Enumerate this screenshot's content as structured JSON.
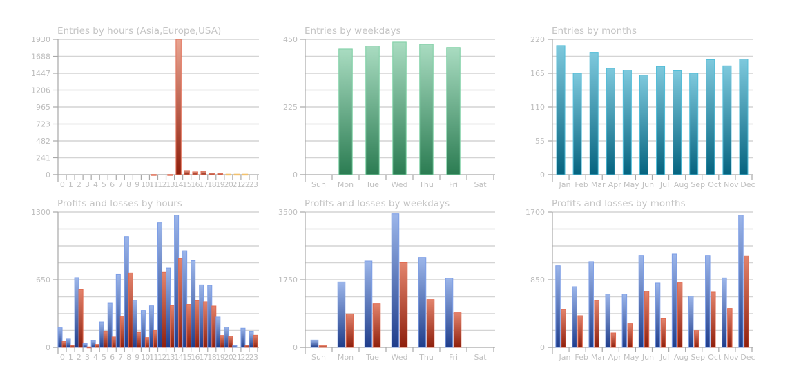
{
  "colors": {
    "entries_hours": [
      "#e9a592",
      "#8e1f0c",
      "#e07058"
    ],
    "entries_hours_orange": [
      "#ffd27a",
      "#f5b23a",
      "#f0c070"
    ],
    "entries_weekdays": [
      "#a9dcc1",
      "#2b7c52",
      "#7ccfa3"
    ],
    "entries_months": [
      "#7ec9dd",
      "#05637f",
      "#52bdd8"
    ],
    "profit": [
      "#9cb6ea",
      "#1f3d8b",
      "#7d9ee6"
    ],
    "loss": [
      "#e3846d",
      "#8e1f0c",
      "#e06a50"
    ]
  },
  "chart_data": [
    {
      "id": "entries-hours",
      "type": "bar",
      "title": "Entries by hours (Asia,Europe,USA)",
      "categories": [
        "0",
        "1",
        "2",
        "3",
        "4",
        "5",
        "6",
        "7",
        "8",
        "9",
        "10",
        "11",
        "12",
        "13",
        "14",
        "15",
        "16",
        "17",
        "18",
        "19",
        "20",
        "21",
        "22",
        "23"
      ],
      "series": [
        {
          "name": "Entries",
          "values": [
            0,
            0,
            0,
            0,
            0,
            0,
            0,
            0,
            0,
            0,
            0,
            3,
            0,
            3,
            1930,
            60,
            40,
            48,
            22,
            18,
            8,
            8,
            8,
            0
          ]
        }
      ],
      "highlight_orange_from": 20,
      "yticks": [
        "0",
        "241",
        "482",
        "723",
        "965",
        "1206",
        "1447",
        "1688",
        "1930"
      ],
      "ylim": [
        0,
        1930
      ],
      "grid": true,
      "xlabel": "",
      "ylabel": ""
    },
    {
      "id": "entries-weekdays",
      "type": "bar",
      "title": "Entries by weekdays",
      "categories": [
        "Sun",
        "Mon",
        "Tue",
        "Wed",
        "Thu",
        "Fri",
        "Sat"
      ],
      "series": [
        {
          "name": "Entries",
          "values": [
            0,
            418,
            428,
            441,
            434,
            423,
            0
          ]
        }
      ],
      "yticks": [
        "0",
        "225",
        "450"
      ],
      "ylim": [
        0,
        450
      ],
      "grid": true,
      "xlabel": "",
      "ylabel": ""
    },
    {
      "id": "entries-months",
      "type": "bar",
      "title": "Entries by months",
      "categories": [
        "Jan",
        "Feb",
        "Mar",
        "Apr",
        "May",
        "Jun",
        "Jul",
        "Aug",
        "Sep",
        "Oct",
        "Nov",
        "Dec"
      ],
      "series": [
        {
          "name": "Entries",
          "values": [
            210,
            165,
            198,
            173,
            170,
            162,
            176,
            169,
            165,
            187,
            177,
            188
          ]
        }
      ],
      "yticks": [
        "0",
        "55",
        "110",
        "165",
        "220"
      ],
      "ylim": [
        0,
        220
      ],
      "grid": true,
      "xlabel": "",
      "ylabel": ""
    },
    {
      "id": "pl-hours",
      "type": "bar",
      "title": "Profits and losses by hours",
      "categories": [
        "0",
        "1",
        "2",
        "3",
        "4",
        "5",
        "6",
        "7",
        "8",
        "9",
        "10",
        "11",
        "12",
        "13",
        "14",
        "15",
        "16",
        "17",
        "18",
        "19",
        "20",
        "21",
        "22",
        "23"
      ],
      "series": [
        {
          "name": "Profits",
          "values": [
            188,
            80,
            670,
            36,
            66,
            245,
            424,
            700,
            1063,
            453,
            354,
            400,
            1196,
            762,
            1269,
            928,
            833,
            601,
            597,
            292,
            195,
            18,
            184,
            149
          ]
        },
        {
          "name": "Losses",
          "values": [
            56,
            22,
            555,
            5,
            29,
            153,
            100,
            301,
            714,
            144,
            95,
            162,
            721,
            404,
            855,
            414,
            449,
            438,
            398,
            115,
            109,
            0,
            22,
            117
          ]
        }
      ],
      "yticks": [
        "0",
        "650",
        "1300"
      ],
      "ylim": [
        0,
        1300
      ],
      "grid": true,
      "xlabel": "",
      "ylabel": ""
    },
    {
      "id": "pl-weekdays",
      "type": "bar",
      "title": "Profits and losses by weekdays",
      "categories": [
        "Sun",
        "Mon",
        "Tue",
        "Wed",
        "Thu",
        "Fri",
        "Sat"
      ],
      "series": [
        {
          "name": "Profits",
          "values": [
            190,
            1690,
            2232,
            3452,
            2327,
            1792,
            0
          ]
        },
        {
          "name": "Losses",
          "values": [
            42,
            869,
            1131,
            2190,
            1238,
            899,
            0
          ]
        }
      ],
      "yticks": [
        "0",
        "1750",
        "3500"
      ],
      "ylim": [
        0,
        3500
      ],
      "grid": true,
      "xlabel": "",
      "ylabel": ""
    },
    {
      "id": "pl-months",
      "type": "bar",
      "title": "Profits and losses by months",
      "categories": [
        "Jan",
        "Feb",
        "Mar",
        "Apr",
        "May",
        "Jun",
        "Jul",
        "Aug",
        "Sep",
        "Oct",
        "Nov",
        "Dec"
      ],
      "series": [
        {
          "name": "Profits",
          "values": [
            1026,
            763,
            1076,
            671,
            671,
            1156,
            807,
            1171,
            645,
            1156,
            873,
            1660
          ]
        },
        {
          "name": "Losses",
          "values": [
            477,
            399,
            590,
            182,
            298,
            705,
            361,
            810,
            211,
            694,
            489,
            1151
          ]
        }
      ],
      "yticks": [
        "0",
        "850",
        "1700"
      ],
      "ylim": [
        0,
        1700
      ],
      "grid": true,
      "xlabel": "",
      "ylabel": ""
    }
  ]
}
